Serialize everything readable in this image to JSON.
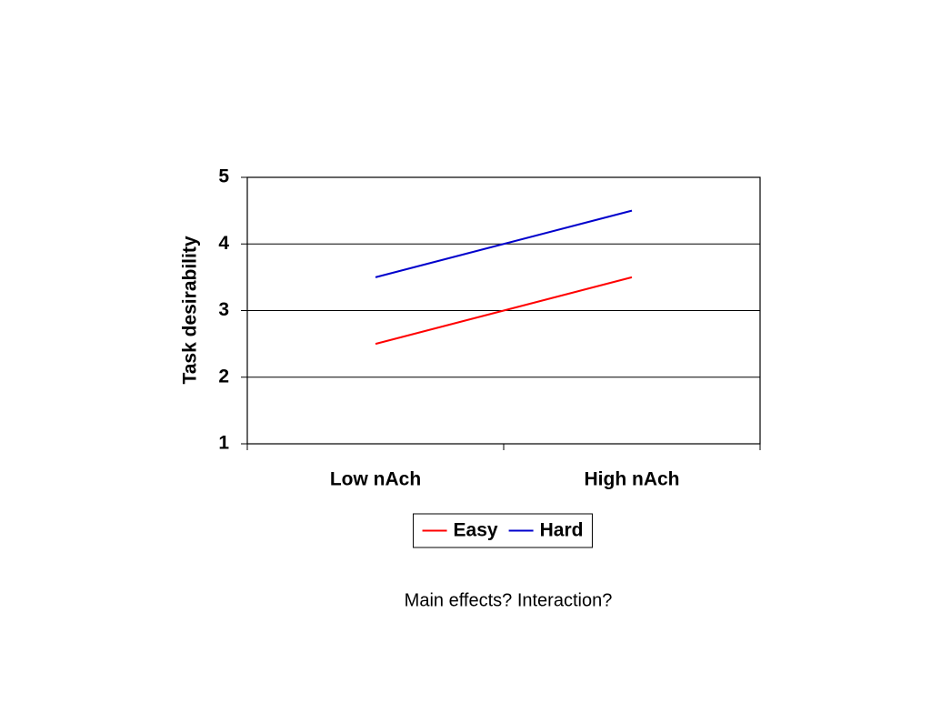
{
  "chart_data": {
    "type": "line",
    "ylabel": "Task desirability",
    "categories": [
      "Low nAch",
      "High nAch"
    ],
    "series": [
      {
        "name": "Easy",
        "color": "#ff0000",
        "values": [
          2.5,
          3.5
        ]
      },
      {
        "name": "Hard",
        "color": "#0000cc",
        "values": [
          3.5,
          4.5
        ]
      }
    ],
    "ylim": [
      1,
      5
    ],
    "yticks": [
      1,
      2,
      3,
      4,
      5
    ],
    "grid": true,
    "legend": "bottom"
  },
  "caption": "Main effects?  Interaction?"
}
